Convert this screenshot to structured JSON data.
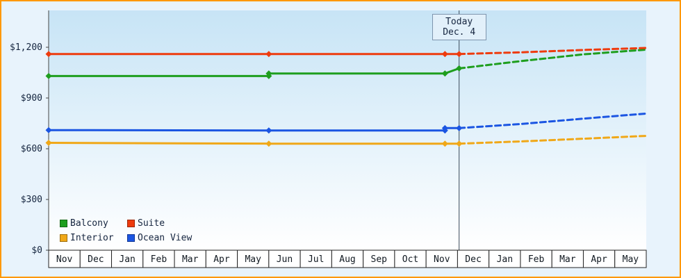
{
  "window": {
    "frame_border_color": "#ff9800",
    "background_color": "#e8f3fc"
  },
  "chart_data": {
    "type": "line",
    "title": "",
    "x_axis": {
      "months": [
        "Nov",
        "Dec",
        "Jan",
        "Feb",
        "Mar",
        "Apr",
        "May",
        "Jun",
        "Jul",
        "Aug",
        "Sep",
        "Oct",
        "Nov",
        "Dec",
        "Jan",
        "Feb",
        "Mar",
        "Apr",
        "May"
      ]
    },
    "y_axis": {
      "ticks": [
        {
          "value": 1200,
          "label": "$1,200"
        },
        {
          "value": 900,
          "label": "$900"
        },
        {
          "value": 600,
          "label": "$600"
        },
        {
          "value": 300,
          "label": "$300"
        },
        {
          "value": 0,
          "label": "$0"
        }
      ],
      "ylim": [
        0,
        1420
      ],
      "grid": false
    },
    "today_marker": {
      "line1": "Today",
      "line2": "Dec. 4",
      "x_index": 13.05
    },
    "legend": [
      {
        "label": "Balcony",
        "color": "#1e9e1e"
      },
      {
        "label": "Suite",
        "color": "#ee3b0e"
      },
      {
        "label": "Interior",
        "color": "#f0a818"
      },
      {
        "label": "Ocean View",
        "color": "#1b55e2"
      }
    ],
    "series": [
      {
        "name": "Interior",
        "color": "#f0a818",
        "solid": [
          [
            0,
            635
          ],
          [
            7,
            630
          ],
          [
            12.6,
            630
          ],
          [
            13.05,
            630
          ]
        ],
        "markers": [
          [
            0,
            635
          ],
          [
            7,
            630
          ],
          [
            12.6,
            630
          ],
          [
            13.05,
            630
          ]
        ],
        "dashed": [
          [
            13.05,
            630
          ],
          [
            15,
            643
          ],
          [
            17,
            659
          ],
          [
            19,
            676
          ]
        ]
      },
      {
        "name": "Ocean View",
        "color": "#1b55e2",
        "solid": [
          [
            0,
            710
          ],
          [
            7,
            708
          ],
          [
            12.6,
            708
          ],
          [
            12.6,
            722
          ],
          [
            13.05,
            722
          ]
        ],
        "markers": [
          [
            0,
            710
          ],
          [
            7,
            708
          ],
          [
            12.6,
            708
          ],
          [
            12.6,
            722
          ],
          [
            13.05,
            722
          ]
        ],
        "dashed": [
          [
            13.05,
            722
          ],
          [
            15,
            746
          ],
          [
            17,
            778
          ],
          [
            19,
            808
          ]
        ]
      },
      {
        "name": "Balcony",
        "color": "#1e9e1e",
        "solid": [
          [
            0,
            1030
          ],
          [
            7,
            1030
          ],
          [
            7,
            1045
          ],
          [
            12.6,
            1045
          ],
          [
            13.05,
            1075
          ]
        ],
        "markers": [
          [
            0,
            1030
          ],
          [
            7,
            1030
          ],
          [
            7,
            1045
          ],
          [
            12.6,
            1045
          ],
          [
            13.05,
            1075
          ]
        ],
        "dashed": [
          [
            13.05,
            1075
          ],
          [
            15,
            1118
          ],
          [
            17,
            1158
          ],
          [
            19,
            1186
          ]
        ]
      },
      {
        "name": "Suite",
        "color": "#ee3b0e",
        "solid": [
          [
            0,
            1160
          ],
          [
            7,
            1160
          ],
          [
            12.6,
            1160
          ],
          [
            13.05,
            1160
          ]
        ],
        "markers": [
          [
            0,
            1160
          ],
          [
            7,
            1160
          ],
          [
            12.6,
            1160
          ],
          [
            13.05,
            1160
          ]
        ],
        "dashed": [
          [
            13.05,
            1160
          ],
          [
            15,
            1170
          ],
          [
            17,
            1184
          ],
          [
            19,
            1196
          ]
        ]
      }
    ]
  }
}
